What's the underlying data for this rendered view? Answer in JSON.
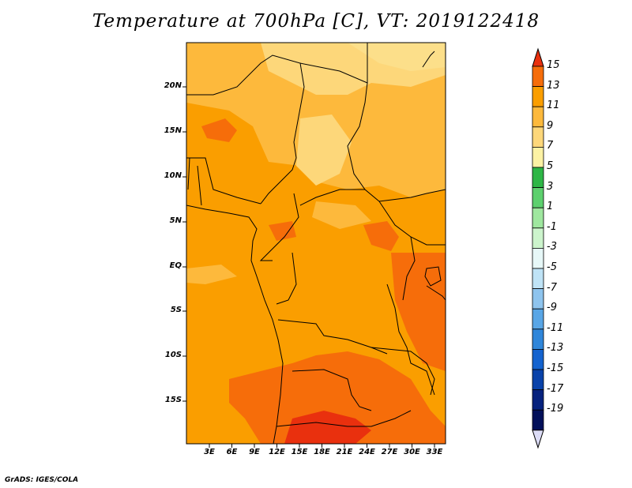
{
  "title": "Temperature at 700hPa [C], VT: 2019122418",
  "credit": "GrADS: IGES/COLA",
  "map": {
    "lat_labels": [
      "20N",
      "15N",
      "10N",
      "5N",
      "EQ",
      "5S",
      "10S",
      "15S"
    ],
    "lon_labels": [
      "3E",
      "6E",
      "9E",
      "12E",
      "15E",
      "18E",
      "21E",
      "24E",
      "27E",
      "30E",
      "33E"
    ],
    "dominant_colors": [
      "#fa9e00",
      "#fdb93c",
      "#f66d0a",
      "#fdd77a",
      "#fcdf8a"
    ]
  },
  "colorbar": {
    "labels": [
      "15",
      "13",
      "11",
      "9",
      "7",
      "5",
      "3",
      "1",
      "-1",
      "-3",
      "-5",
      "-7",
      "-9",
      "-11",
      "-13",
      "-15",
      "-17",
      "-19"
    ],
    "colors": [
      "#e9300e",
      "#f66d0a",
      "#fa9e00",
      "#fdb93c",
      "#fdd77a",
      "#fcf2a4",
      "#2eb646",
      "#5dd06e",
      "#9fe79f",
      "#ccf4cc",
      "#e7f8f8",
      "#bfe3f6",
      "#8ec4ee",
      "#59a6e6",
      "#2f86da",
      "#1463cf",
      "#0942aa",
      "#06227e",
      "#02105a",
      "#dcdcf6"
    ]
  }
}
